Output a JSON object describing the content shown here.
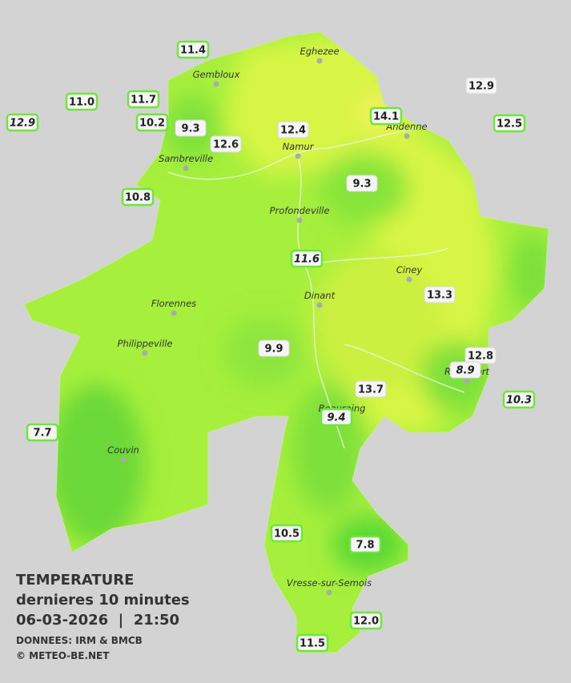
{
  "header": {
    "title": "TEMPERATURE",
    "subtitle": "dernieres 10 minutes",
    "timestamp": "06-03-2026  |  21:50",
    "source": "DONNEES: IRM & BMCB",
    "credit": "© METEO-BE.NET"
  },
  "cities": [
    "Eghezee",
    "Gembloux",
    "Andenne",
    "Namur",
    "Sambreville",
    "Profondeville",
    "Ciney",
    "Dinant",
    "Florennes",
    "Philippeville",
    "Rochefort",
    "Beauraing",
    "Couvin",
    "Vresse-sur-Semois"
  ],
  "stations": [
    "11.4",
    "11.0",
    "11.7",
    "12.9",
    "10.2",
    "9.3",
    "12.6",
    "12.4",
    "14.1",
    "12.9",
    "12.5",
    "10.8",
    "9.3",
    "11.6",
    "13.3",
    "9.9",
    "12.8",
    "8.9",
    "10.3",
    "13.7",
    "9.4",
    "7.7",
    "10.5",
    "7.8",
    "12.0",
    "11.5"
  ]
}
